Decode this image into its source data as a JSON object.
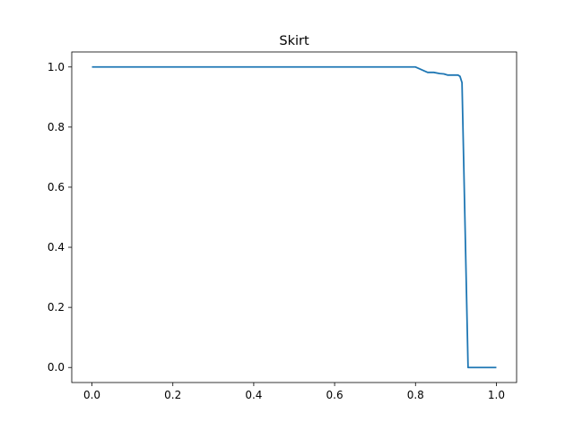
{
  "chart_data": {
    "type": "line",
    "title": "Skirt",
    "xlabel": "",
    "ylabel": "",
    "xlim": [
      -0.05,
      1.05
    ],
    "ylim": [
      -0.05,
      1.05
    ],
    "x_ticks": [
      0.0,
      0.2,
      0.4,
      0.6,
      0.8,
      1.0
    ],
    "x_tick_labels": [
      "0.0",
      "0.2",
      "0.4",
      "0.6",
      "0.8",
      "1.0"
    ],
    "y_ticks": [
      0.0,
      0.2,
      0.4,
      0.6,
      0.8,
      1.0
    ],
    "y_tick_labels": [
      "0.0",
      "0.2",
      "0.4",
      "0.6",
      "0.8",
      "1.0"
    ],
    "grid": false,
    "line_color": "#1f77b4",
    "series": [
      {
        "x": [
          0.0,
          0.8,
          0.83,
          0.845,
          0.86,
          0.87,
          0.88,
          0.895,
          0.905,
          0.91,
          0.915,
          0.93,
          1.0
        ],
        "y": [
          1.0,
          1.0,
          0.982,
          0.982,
          0.978,
          0.977,
          0.973,
          0.973,
          0.973,
          0.969,
          0.948,
          0.0,
          0.0
        ]
      }
    ]
  }
}
